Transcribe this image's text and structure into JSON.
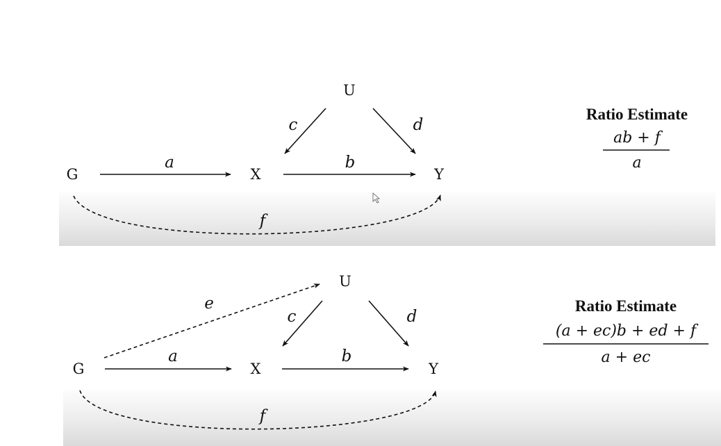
{
  "diagrams": [
    {
      "nodes": {
        "G": "G",
        "X": "X",
        "Y": "Y",
        "U": "U"
      },
      "edges": {
        "a": "a",
        "b": "b",
        "c": "c",
        "d": "d",
        "f": "f"
      },
      "formula": {
        "title": "Ratio Estimate",
        "numerator": "ab + f",
        "denominator": "a"
      }
    },
    {
      "nodes": {
        "G": "G",
        "X": "X",
        "Y": "Y",
        "U": "U"
      },
      "edges": {
        "a": "a",
        "b": "b",
        "c": "c",
        "d": "d",
        "e": "e",
        "f": "f"
      },
      "formula": {
        "title": "Ratio Estimate",
        "numerator": "(a + ec)b + ed + f",
        "denominator": "a + ec"
      }
    }
  ]
}
